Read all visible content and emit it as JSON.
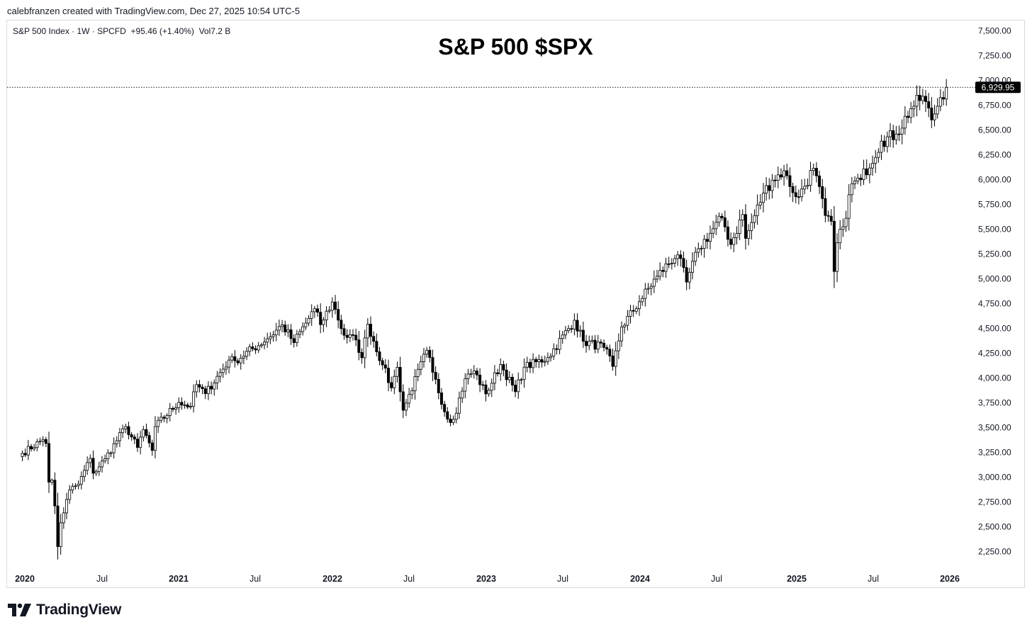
{
  "header": {
    "credit": "calebfranzen created with TradingView.com, Dec 27, 2025 10:54 UTC-5"
  },
  "symbol_info": {
    "text": "S&P 500 Index · 1W · SPCFD  +95.46 (+1.40%)  Vol7.2 B"
  },
  "footer": {
    "brand": "TradingView"
  },
  "chart_data": {
    "type": "candlestick",
    "title": "S&P 500 $SPX",
    "interval": "1W",
    "last_price": 6929.95,
    "last_price_label": "6,929.95",
    "ylim": [
      2150,
      7600
    ],
    "y_ticks": [
      7500,
      7250,
      7000,
      6750,
      6500,
      6250,
      6000,
      5750,
      5500,
      5250,
      5000,
      4750,
      4500,
      4250,
      4000,
      3750,
      3500,
      3250,
      3000,
      2750,
      2500,
      2250
    ],
    "y_tick_labels": [
      "7,500.00",
      "7,250.00",
      "7,000.00",
      "6,750.00",
      "6,500.00",
      "6,250.00",
      "6,000.00",
      "5,750.00",
      "5,500.00",
      "5,250.00",
      "5,000.00",
      "4,750.00",
      "4,500.00",
      "4,250.00",
      "4,000.00",
      "3,750.00",
      "3,500.00",
      "3,250.00",
      "3,000.00",
      "2,750.00",
      "2,500.00",
      "2,250.00"
    ],
    "x_ticks": [
      {
        "label": "2020",
        "major": true
      },
      {
        "label": "Jul",
        "major": false
      },
      {
        "label": "2021",
        "major": true
      },
      {
        "label": "Jul",
        "major": false
      },
      {
        "label": "2022",
        "major": true
      },
      {
        "label": "Jul",
        "major": false
      },
      {
        "label": "2023",
        "major": true
      },
      {
        "label": "Jul",
        "major": false
      },
      {
        "label": "2024",
        "major": true
      },
      {
        "label": "Jul",
        "major": false
      },
      {
        "label": "2025",
        "major": true
      },
      {
        "label": "Jul",
        "major": false
      },
      {
        "label": "2026",
        "major": true
      }
    ],
    "candle_color_up": "#ffffff",
    "candle_color_down": "#000000",
    "candle_outline": "#000000",
    "anchors": [
      [
        "2019-12-27",
        3240
      ],
      [
        "2020-02-14",
        3380
      ],
      [
        "2020-02-21",
        3340
      ],
      [
        "2020-02-28",
        2950
      ],
      [
        "2020-03-06",
        2970
      ],
      [
        "2020-03-13",
        2710
      ],
      [
        "2020-03-20",
        2300
      ],
      [
        "2020-03-27",
        2540
      ],
      [
        "2020-04-17",
        2870
      ],
      [
        "2020-05-08",
        2930
      ],
      [
        "2020-06-05",
        3190
      ],
      [
        "2020-06-12",
        3040
      ],
      [
        "2020-07-10",
        3185
      ],
      [
        "2020-08-28",
        3510
      ],
      [
        "2020-09-25",
        3300
      ],
      [
        "2020-10-09",
        3480
      ],
      [
        "2020-10-30",
        3270
      ],
      [
        "2020-11-06",
        3510
      ],
      [
        "2020-12-31",
        3756
      ],
      [
        "2021-01-29",
        3714
      ],
      [
        "2021-02-12",
        3934
      ],
      [
        "2021-03-05",
        3842
      ],
      [
        "2021-04-30",
        4181
      ],
      [
        "2021-05-14",
        4173
      ],
      [
        "2021-07-30",
        4395
      ],
      [
        "2021-09-03",
        4535
      ],
      [
        "2021-10-01",
        4357
      ],
      [
        "2021-11-19",
        4698
      ],
      [
        "2021-12-03",
        4538
      ],
      [
        "2021-12-31",
        4766
      ],
      [
        "2022-01-28",
        4431
      ],
      [
        "2022-02-25",
        4384
      ],
      [
        "2022-03-11",
        4204
      ],
      [
        "2022-03-25",
        4543
      ],
      [
        "2022-04-29",
        4132
      ],
      [
        "2022-05-20",
        3901
      ],
      [
        "2022-06-03",
        4108
      ],
      [
        "2022-06-17",
        3675
      ],
      [
        "2022-08-12",
        4280
      ],
      [
        "2022-08-26",
        4058
      ],
      [
        "2022-09-30",
        3586
      ],
      [
        "2022-10-14",
        3583
      ],
      [
        "2022-11-11",
        3993
      ],
      [
        "2022-12-02",
        4071
      ],
      [
        "2022-12-30",
        3840
      ],
      [
        "2023-02-03",
        4136
      ],
      [
        "2023-03-10",
        3862
      ],
      [
        "2023-03-31",
        4109
      ],
      [
        "2023-05-26",
        4205
      ],
      [
        "2023-07-28",
        4582
      ],
      [
        "2023-08-18",
        4370
      ],
      [
        "2023-10-06",
        4308
      ],
      [
        "2023-10-27",
        4117
      ],
      [
        "2023-11-17",
        4514
      ],
      [
        "2023-12-29",
        4769
      ],
      [
        "2024-02-09",
        5026
      ],
      [
        "2024-03-28",
        5254
      ],
      [
        "2024-04-19",
        4967
      ],
      [
        "2024-05-17",
        5303
      ],
      [
        "2024-07-12",
        5615
      ],
      [
        "2024-08-02",
        5346
      ],
      [
        "2024-08-30",
        5648
      ],
      [
        "2024-09-06",
        5408
      ],
      [
        "2024-10-18",
        5864
      ],
      [
        "2024-11-08",
        5995
      ],
      [
        "2024-12-06",
        6090
      ],
      [
        "2024-12-20",
        5930
      ],
      [
        "2025-01-10",
        5827
      ],
      [
        "2025-02-14",
        6114
      ],
      [
        "2025-03-14",
        5638
      ],
      [
        "2025-03-28",
        5580
      ],
      [
        "2025-04-04",
        5074
      ],
      [
        "2025-04-11",
        5363
      ],
      [
        "2025-04-25",
        5525
      ],
      [
        "2025-05-16",
        5958
      ],
      [
        "2025-06-06",
        6000
      ],
      [
        "2025-07-25",
        6388
      ],
      [
        "2025-08-29",
        6460
      ],
      [
        "2025-10-03",
        6715
      ],
      [
        "2025-10-31",
        6840
      ],
      [
        "2025-11-21",
        6602
      ],
      [
        "2025-12-12",
        6827
      ],
      [
        "2025-12-26",
        6930
      ]
    ]
  }
}
